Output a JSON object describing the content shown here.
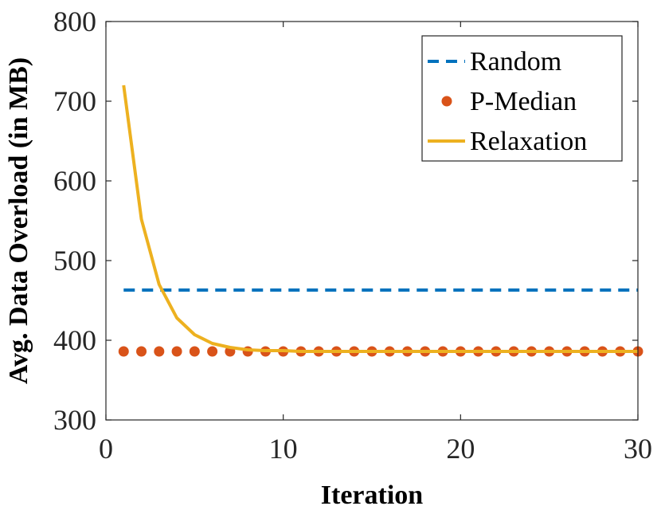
{
  "chart_data": {
    "type": "line",
    "xlabel": "Iteration",
    "ylabel": "Avg. Data Overload (in MB)",
    "xlim": [
      0,
      30
    ],
    "ylim": [
      300,
      800
    ],
    "xticks": [
      0,
      10,
      20,
      30
    ],
    "yticks": [
      300,
      400,
      500,
      600,
      700,
      800
    ],
    "grid": false,
    "legend_position": "top-right",
    "series": [
      {
        "name": "Random",
        "style": "dashed",
        "color": "#0072BD",
        "x": [
          1,
          30
        ],
        "y": [
          463,
          463
        ]
      },
      {
        "name": "P-Median",
        "style": "markers",
        "color": "#D95319",
        "x": [
          1,
          2,
          3,
          4,
          5,
          6,
          7,
          8,
          9,
          10,
          11,
          12,
          13,
          14,
          15,
          16,
          17,
          18,
          19,
          20,
          21,
          22,
          23,
          24,
          25,
          26,
          27,
          28,
          29,
          30
        ],
        "y": [
          386,
          386,
          386,
          386,
          386,
          386,
          386,
          386,
          386,
          386,
          386,
          386,
          386,
          386,
          386,
          386,
          386,
          386,
          386,
          386,
          386,
          386,
          386,
          386,
          386,
          386,
          386,
          386,
          386,
          386
        ]
      },
      {
        "name": "Relaxation",
        "style": "solid",
        "color": "#EDB120",
        "x": [
          1,
          2,
          3,
          4,
          5,
          6,
          7,
          8,
          9,
          10,
          11,
          12,
          13,
          14,
          15,
          16,
          17,
          18,
          19,
          20,
          21,
          22,
          23,
          24,
          25,
          26,
          27,
          28,
          29,
          30
        ],
        "y": [
          720,
          552,
          470,
          428,
          407,
          396,
          391,
          388,
          387,
          387,
          386,
          386,
          386,
          386,
          386,
          386,
          386,
          386,
          386,
          386,
          386,
          386,
          386,
          386,
          386,
          386,
          386,
          386,
          386,
          386
        ]
      }
    ]
  }
}
